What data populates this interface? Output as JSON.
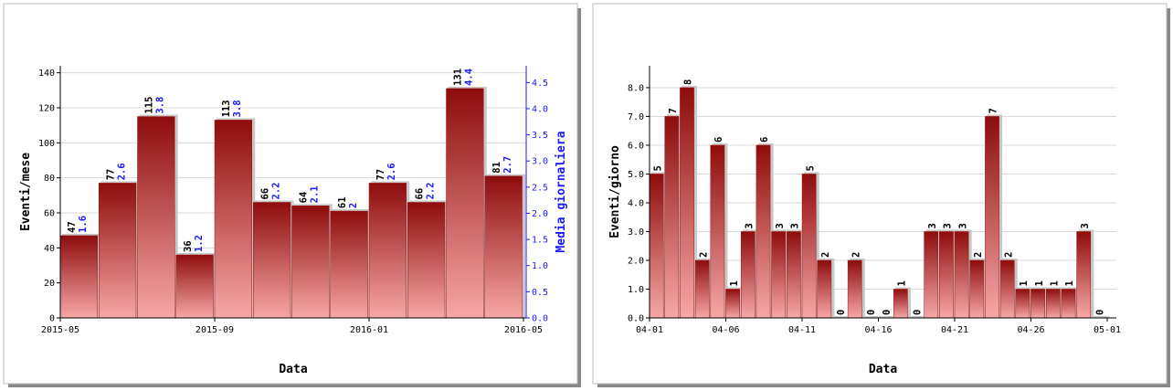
{
  "chart_data": [
    {
      "type": "bar",
      "x": [
        "2015-05",
        "2015-06",
        "2015-07",
        "2015-08",
        "2015-09",
        "2015-10",
        "2015-11",
        "2015-12",
        "2016-01",
        "2016-02",
        "2016-03",
        "2016-04"
      ],
      "xlim": [
        "2015-05",
        "2016-05"
      ],
      "xticks": [
        "2015-05",
        "2015-09",
        "2016-01",
        "2016-05"
      ],
      "xlabel": "Data",
      "series": [
        {
          "name": "Eventi/mese",
          "color": "#a01010",
          "values": [
            47,
            77,
            115,
            36,
            113,
            66,
            64,
            61,
            77,
            66,
            131,
            81
          ]
        },
        {
          "name": "Media giornaliera",
          "color": "#1a1aff",
          "axis": "y2",
          "values": [
            1.6,
            2.6,
            3.8,
            1.2,
            3.8,
            2.2,
            2.1,
            2.0,
            2.6,
            2.2,
            4.4,
            2.7
          ]
        }
      ],
      "ylim": [
        0,
        144
      ],
      "yticks": [
        0,
        20,
        40,
        60,
        80,
        100,
        120,
        140
      ],
      "y2lim": [
        0,
        4.82
      ],
      "y2ticks": [
        {
          "value": 0,
          "label": "0.0"
        },
        {
          "value": 0.5,
          "label": "0.5"
        },
        {
          "value": 1,
          "label": "1.0"
        },
        {
          "value": 1.5,
          "label": "1.5"
        },
        {
          "value": 2,
          "label": "2.0"
        },
        {
          "value": 2.5,
          "label": "2.5"
        },
        {
          "value": 3,
          "label": "3.0"
        },
        {
          "value": 3.5,
          "label": "3.5"
        },
        {
          "value": 4,
          "label": "4.0"
        },
        {
          "value": 4.5,
          "label": "4.5"
        }
      ],
      "grid": true
    },
    {
      "type": "bar",
      "x": [
        "04-01",
        "04-02",
        "04-03",
        "04-04",
        "04-05",
        "04-06",
        "04-07",
        "04-08",
        "04-09",
        "04-10",
        "04-11",
        "04-12",
        "04-13",
        "04-14",
        "04-15",
        "04-16",
        "04-17",
        "04-18",
        "04-19",
        "04-20",
        "04-21",
        "04-22",
        "04-23",
        "04-24",
        "04-25",
        "04-26",
        "04-27",
        "04-28",
        "04-29",
        "04-30"
      ],
      "xlim": [
        "04-01",
        "05-01"
      ],
      "xticks": [
        "04-01",
        "04-06",
        "04-11",
        "04-16",
        "04-21",
        "04-26",
        "05-01"
      ],
      "xlabel": "Data",
      "series": [
        {
          "name": "Eventi/giorno",
          "color": "#a01010",
          "values": [
            5,
            7,
            8,
            2,
            6,
            1,
            3,
            6,
            3,
            3,
            5,
            2,
            0,
            2,
            0,
            0,
            1,
            0,
            3,
            3,
            3,
            2,
            7,
            2,
            1,
            1,
            1,
            1,
            3,
            0
          ]
        }
      ],
      "ylim": [
        0,
        8.76
      ],
      "yticks": [
        {
          "value": 0,
          "label": "0.0"
        },
        {
          "value": 1,
          "label": "1.0"
        },
        {
          "value": 2,
          "label": "2.0"
        },
        {
          "value": 3,
          "label": "3.0"
        },
        {
          "value": 4,
          "label": "4.0"
        },
        {
          "value": 5,
          "label": "5.0"
        },
        {
          "value": 6,
          "label": "6.0"
        },
        {
          "value": 7,
          "label": "7.0"
        },
        {
          "value": 8,
          "label": "8.0"
        }
      ],
      "grid": true
    }
  ]
}
